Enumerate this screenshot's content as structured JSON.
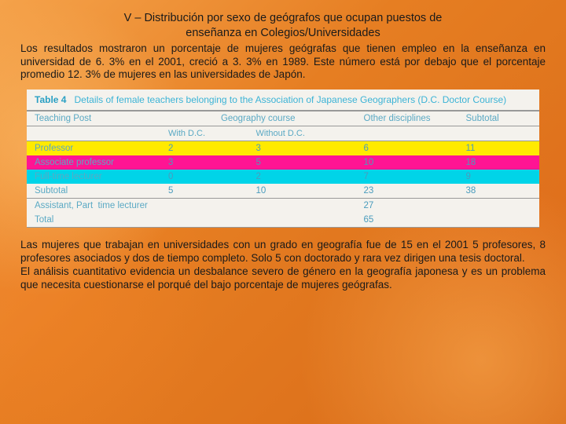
{
  "title_l1": "V – Distribución por sexo de geógrafos que ocupan puestos de",
  "title_l2": "enseñanza en Colegios/Universidades",
  "para1": "Los resultados mostraron un porcentaje de mujeres geógrafas que tienen empleo en la enseñanza en universidad de 6. 3%  en el 2001, creció a 3. 3% en 1989. Este número está por debajo que el porcentaje promedio 12. 3% de mujeres en las universidades de Japón.",
  "para2": "Las mujeres que trabajan en universidades con un grado en geografía fue de 15 en el 2001 5 profesores, 8 profesores asociados y dos de tiempo completo. Solo 5 con doctorado y rara vez dirigen una tesis doctoral.",
  "para3": "El análisis cuantitativo evidencia un desbalance severo de género en la geografía japonesa y es un problema que necesita cuestionarse el porqué del bajo porcentaje de mujeres geógrafas.",
  "tbl": {
    "caption_label": "Table 4",
    "caption": "Details of female teachers belonging to the Association of Japanese Geographers (D.C.   Doctor Course)",
    "h_post": "Teaching Post",
    "h_geo": "Geography course",
    "h_other": "Other disciplines",
    "h_sub": "Subtotal",
    "h_with": "With D.C.",
    "h_without": "Without D.C.",
    "rows": [
      {
        "label": "Professor",
        "a": "2",
        "b": "3",
        "c": "6",
        "d": "11",
        "cls": "row-yellow"
      },
      {
        "label": "Associate professor",
        "a": "3",
        "b": "5",
        "c": "10",
        "d": "18",
        "cls": "row-magenta"
      },
      {
        "label": "Full-time lecturer",
        "a": "0",
        "b": "2",
        "c": "7",
        "d": "9",
        "cls": "row-cyan"
      },
      {
        "label": "Subtotal",
        "a": "5",
        "b": "10",
        "c": "23",
        "d": "38",
        "cls": ""
      }
    ],
    "assist": {
      "label": "Assistant, Part  time lecturer",
      "c": "27"
    },
    "total": {
      "label": "Total",
      "c": "65"
    }
  },
  "colors": {
    "yellow": "#ffea00",
    "magenta": "#ff1493",
    "cyan": "#00d4e8",
    "table_bg": "#f4f2ed",
    "table_text": "#4a9cbd"
  }
}
